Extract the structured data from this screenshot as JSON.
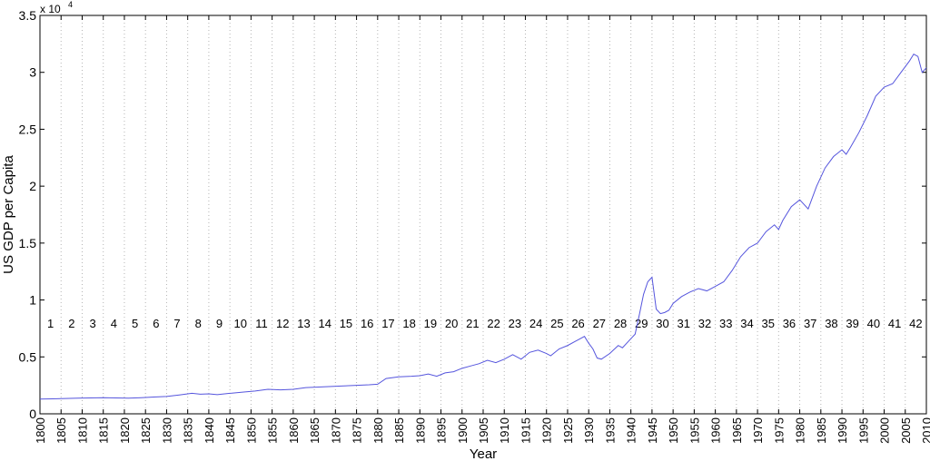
{
  "chart_data": {
    "type": "line",
    "xlabel": "Year",
    "ylabel": "US GDP per Capita",
    "y_exponent_label": "x 10",
    "y_exponent_power": "4",
    "xlim": [
      1800,
      2010
    ],
    "ylim": [
      0,
      35000
    ],
    "x_ticks": [
      1800,
      1805,
      1810,
      1815,
      1820,
      1825,
      1830,
      1835,
      1840,
      1845,
      1850,
      1855,
      1860,
      1865,
      1870,
      1875,
      1880,
      1885,
      1890,
      1895,
      1900,
      1905,
      1910,
      1915,
      1920,
      1925,
      1930,
      1935,
      1940,
      1945,
      1950,
      1955,
      1960,
      1965,
      1970,
      1975,
      1980,
      1985,
      1990,
      1995,
      2000,
      2005,
      2010
    ],
    "y_ticks": [
      {
        "value": 0,
        "label": "0"
      },
      {
        "value": 5000,
        "label": "0.5"
      },
      {
        "value": 10000,
        "label": "1"
      },
      {
        "value": 15000,
        "label": "1.5"
      },
      {
        "value": 20000,
        "label": "2"
      },
      {
        "value": 25000,
        "label": "2.5"
      },
      {
        "value": 30000,
        "label": "3"
      },
      {
        "value": 35000,
        "label": "3.5"
      }
    ],
    "grid": "vertical dotted lines every 5 years",
    "line_color": "#5555dd",
    "period_labels": [
      "1",
      "2",
      "3",
      "4",
      "5",
      "6",
      "7",
      "8",
      "9",
      "10",
      "11",
      "12",
      "13",
      "14",
      "15",
      "16",
      "17",
      "18",
      "19",
      "20",
      "21",
      "22",
      "23",
      "24",
      "25",
      "26",
      "27",
      "28",
      "29",
      "30",
      "31",
      "32",
      "33",
      "34",
      "35",
      "36",
      "37",
      "38",
      "39",
      "40",
      "41",
      "42"
    ],
    "series": [
      {
        "x": [
          1800,
          1803,
          1806,
          1809,
          1812,
          1815,
          1818,
          1821,
          1824,
          1827,
          1830,
          1833,
          1836,
          1838,
          1840,
          1842,
          1845,
          1848,
          1851,
          1854,
          1857,
          1860,
          1863,
          1866,
          1869,
          1872,
          1875,
          1878,
          1880,
          1882,
          1885,
          1888,
          1890,
          1892,
          1894,
          1896,
          1898,
          1900,
          1902,
          1904,
          1906,
          1908,
          1910,
          1912,
          1914,
          1916,
          1918,
          1920,
          1921,
          1923,
          1925,
          1927,
          1929,
          1930,
          1931,
          1932,
          1933,
          1935,
          1937,
          1938,
          1940,
          1941,
          1942,
          1943,
          1944,
          1945,
          1946,
          1947,
          1948,
          1949,
          1950,
          1952,
          1954,
          1956,
          1958,
          1960,
          1962,
          1964,
          1966,
          1968,
          1970,
          1972,
          1974,
          1975,
          1976,
          1978,
          1980,
          1982,
          1984,
          1986,
          1988,
          1990,
          1991,
          1992,
          1994,
          1996,
          1998,
          2000,
          2002,
          2004,
          2006,
          2007,
          2008,
          2009,
          2010
        ],
        "y": [
          1300,
          1320,
          1350,
          1380,
          1400,
          1420,
          1400,
          1380,
          1420,
          1480,
          1520,
          1650,
          1800,
          1720,
          1750,
          1680,
          1800,
          1900,
          2000,
          2150,
          2100,
          2150,
          2300,
          2350,
          2400,
          2450,
          2500,
          2550,
          2600,
          3100,
          3250,
          3300,
          3350,
          3500,
          3300,
          3600,
          3700,
          4000,
          4200,
          4400,
          4700,
          4500,
          4800,
          5200,
          4800,
          5400,
          5600,
          5300,
          5100,
          5700,
          6000,
          6400,
          6800,
          6200,
          5700,
          4900,
          4800,
          5300,
          6000,
          5800,
          6600,
          7000,
          8700,
          10500,
          11600,
          12000,
          9200,
          8800,
          8900,
          9100,
          9700,
          10300,
          10700,
          11000,
          10800,
          11200,
          11600,
          12600,
          13800,
          14600,
          15000,
          16000,
          16600,
          16200,
          17000,
          18200,
          18800,
          18000,
          20000,
          21600,
          22600,
          23200,
          22800,
          23400,
          24700,
          26200,
          27900,
          28700,
          29000,
          30000,
          31000,
          31600,
          31400,
          30000,
          30400
        ]
      }
    ]
  }
}
